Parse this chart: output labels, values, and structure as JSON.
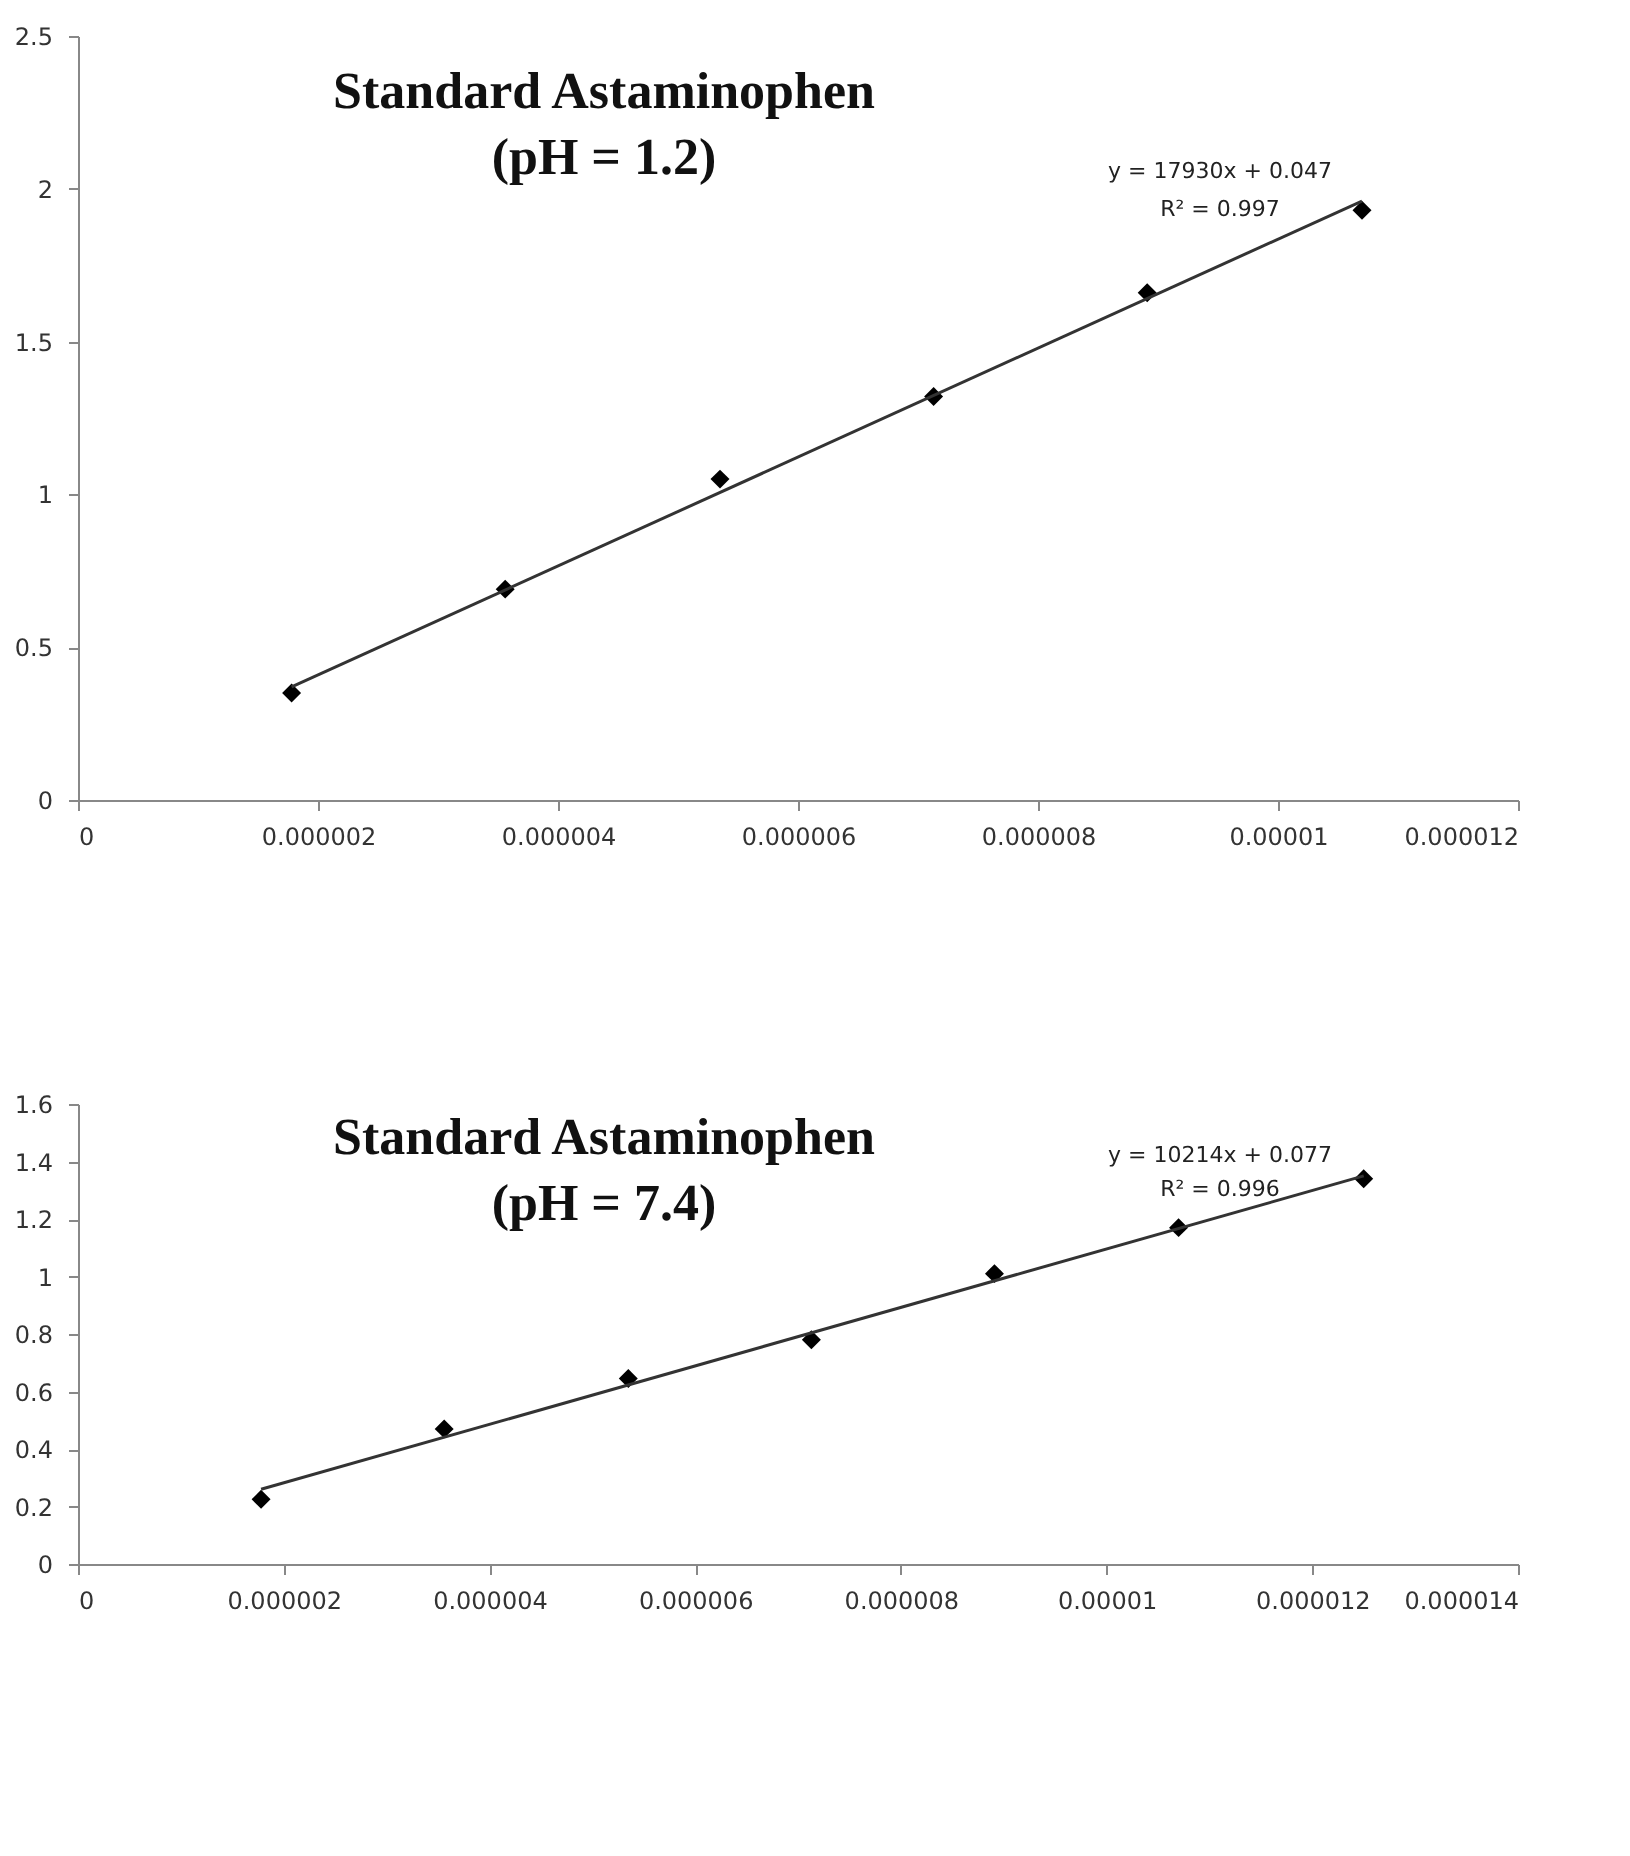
{
  "chart_data": [
    {
      "type": "scatter",
      "title": "Standard Astaminophen",
      "subtitle": "(pH = 1.2)",
      "marker": "diamond",
      "grid": false,
      "xlim": [
        0,
        1.2e-05
      ],
      "xticks": [
        0,
        {
          "value": 2e-06,
          "label": "0.000002"
        },
        {
          "value": 4e-06,
          "label": "0.000004"
        },
        {
          "value": 6e-06,
          "label": "0.000006"
        },
        {
          "value": 8e-06,
          "label": "0.000008"
        },
        {
          "value": 1e-05,
          "label": "0.00001"
        },
        {
          "value": 1.2e-05,
          "label": "0.000012"
        }
      ],
      "ylim": [
        0,
        2.5
      ],
      "yticks": [
        0,
        0.5,
        1,
        1.5,
        2,
        2.5
      ],
      "annotations": [
        "y = 17930x + 0.047",
        "R² = 0.997"
      ],
      "series": [
        {
          "color": "#000000",
          "x": [
            1.78e-06,
            3.56e-06,
            5.35e-06,
            7.13e-06,
            8.91e-06,
            1.07e-05
          ],
          "values": [
            0.35,
            0.69,
            1.05,
            1.32,
            1.66,
            1.93
          ]
        },
        {
          "type": "line",
          "marker": "none",
          "line_style": "solid",
          "color": "#333333",
          "x": [
            1.78e-06,
            1.07e-05
          ],
          "values": [
            0.37,
            1.96
          ]
        }
      ]
    },
    {
      "type": "scatter",
      "title": "Standard Astaminophen",
      "subtitle": "(pH = 7.4)",
      "marker": "diamond",
      "grid": false,
      "xlim": [
        0,
        1.4e-05
      ],
      "xticks": [
        0,
        {
          "value": 2e-06,
          "label": "0.000002"
        },
        {
          "value": 4e-06,
          "label": "0.000004"
        },
        {
          "value": 6e-06,
          "label": "0.000006"
        },
        {
          "value": 8e-06,
          "label": "0.000008"
        },
        {
          "value": 1e-05,
          "label": "0.00001"
        },
        {
          "value": 1.2e-05,
          "label": "0.000012"
        },
        {
          "value": 1.4e-05,
          "label": "0.000014"
        }
      ],
      "ylim": [
        0,
        1.6
      ],
      "yticks": [
        0,
        0.2,
        0.4,
        0.6,
        0.8,
        1,
        1.2,
        1.4,
        1.6
      ],
      "annotations": [
        "y = 10214x + 0.077",
        "R² = 0.996"
      ],
      "series": [
        {
          "color": "#000000",
          "x": [
            1.78e-06,
            3.56e-06,
            5.35e-06,
            7.13e-06,
            8.91e-06,
            1.07e-05,
            1.25e-05
          ],
          "values": [
            0.225,
            0.47,
            0.645,
            0.78,
            1.01,
            1.17,
            1.34
          ]
        },
        {
          "type": "line",
          "marker": "none",
          "line_style": "solid",
          "color": "#333333",
          "x": [
            1.78e-06,
            1.25e-05
          ],
          "values": [
            0.26,
            1.35
          ]
        }
      ]
    }
  ]
}
